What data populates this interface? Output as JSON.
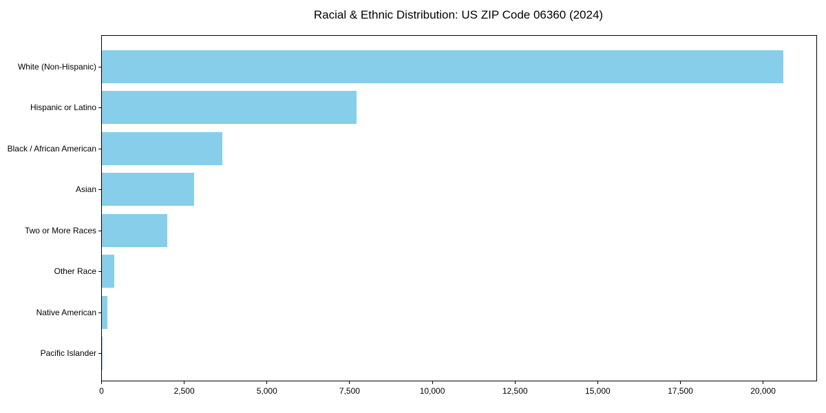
{
  "title": "Racial & Ethnic Distribution: US ZIP Code 06360 (2024)",
  "colors": {
    "bar": "#87CEEB",
    "spine": "#000000",
    "background": "#FFFFFF",
    "text": "#000000"
  },
  "chart_data": {
    "type": "bar",
    "orientation": "horizontal",
    "title": "Racial & Ethnic Distribution: US ZIP Code 06360 (2024)",
    "categories": [
      "White (Non-Hispanic)",
      "Hispanic or Latino",
      "Black / African American",
      "Asian",
      "Two or More Races",
      "Other Race",
      "Native American",
      "Pacific Islander"
    ],
    "values": [
      20600,
      7700,
      3650,
      2790,
      1980,
      380,
      170,
      10
    ],
    "xlabel": "",
    "ylabel": "",
    "xlim": [
      0,
      21600
    ],
    "xticks": [
      0,
      2500,
      5000,
      7500,
      10000,
      12500,
      15000,
      17500,
      20000
    ],
    "xtick_labels": [
      "0",
      "2,500",
      "5,000",
      "7,500",
      "10,000",
      "12,500",
      "15,000",
      "17,500",
      "20,000"
    ],
    "grid": false,
    "legend": "none",
    "bar_color": "#87CEEB"
  }
}
